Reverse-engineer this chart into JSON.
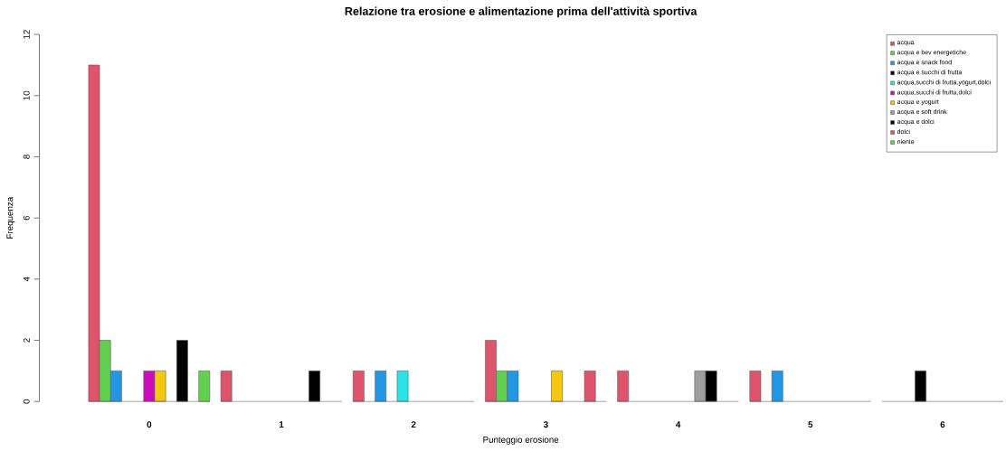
{
  "chart_data": {
    "type": "bar",
    "title": "Relazione tra erosione e alimentazione prima dell'attività sportiva",
    "xlabel": "Punteggio erosione",
    "ylabel": "Frequenza",
    "categories": [
      "0",
      "1",
      "2",
      "3",
      "4",
      "5",
      "6"
    ],
    "series": [
      {
        "name": "acqua",
        "color": "#df536b",
        "values": [
          11,
          1,
          1,
          2,
          1,
          1,
          0
        ]
      },
      {
        "name": "acqua e bev energetiche",
        "color": "#61d04f",
        "values": [
          2,
          0,
          0,
          1,
          0,
          0,
          0
        ]
      },
      {
        "name": "acqua e snack food",
        "color": "#2297e6",
        "values": [
          1,
          0,
          1,
          1,
          0,
          1,
          0
        ]
      },
      {
        "name": "acqua e succhi di frutta",
        "color": "#000000",
        "values": [
          0,
          0,
          0,
          0,
          0,
          0,
          1
        ]
      },
      {
        "name": "acqua,succhi di frutta,yogurt,dolci",
        "color": "#28e2e5",
        "values": [
          0,
          0,
          1,
          0,
          0,
          0,
          0
        ]
      },
      {
        "name": "acqua,succhi di frutta,dolci",
        "color": "#cd0bbc",
        "values": [
          1,
          0,
          0,
          0,
          0,
          0,
          0
        ]
      },
      {
        "name": "acqua e yogurt",
        "color": "#f5c710",
        "values": [
          1,
          0,
          0,
          1,
          0,
          0,
          0
        ]
      },
      {
        "name": "acqua e soft drink",
        "color": "#9e9e9e",
        "values": [
          0,
          0,
          0,
          0,
          1,
          0,
          0
        ]
      },
      {
        "name": "acqua e dolci",
        "color": "#000000",
        "values": [
          2,
          1,
          0,
          0,
          1,
          0,
          0
        ]
      },
      {
        "name": "dolci",
        "color": "#df536b",
        "values": [
          0,
          0,
          0,
          1,
          0,
          0,
          0
        ]
      },
      {
        "name": "niente",
        "color": "#61d04f",
        "values": [
          1,
          0,
          0,
          0,
          0,
          0,
          0
        ]
      }
    ],
    "ylim": [
      0,
      12
    ],
    "yticks": [
      0,
      2,
      4,
      6,
      8,
      10,
      12
    ],
    "grid": false,
    "legend": "top right"
  }
}
